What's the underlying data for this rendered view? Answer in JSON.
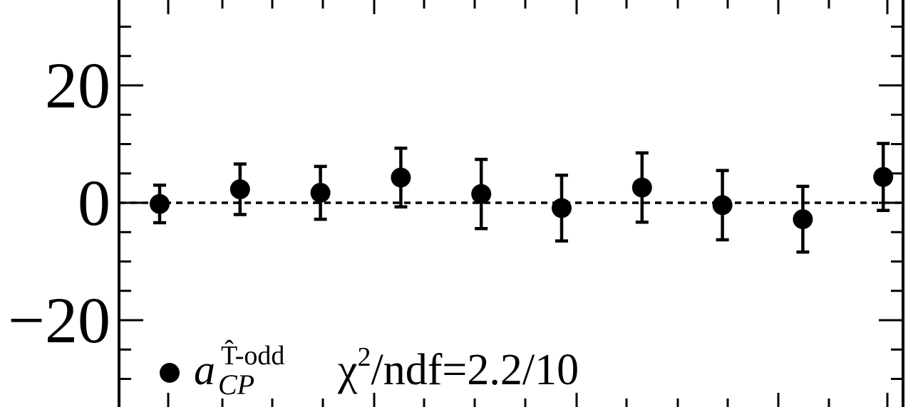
{
  "chart_data": {
    "type": "scatter",
    "ylim": [
      -34,
      34
    ],
    "xlim": [
      0.5,
      10.5
    ],
    "yticks_major": [
      -20,
      0,
      20
    ],
    "ytick_labels": [
      "−20",
      "0",
      "20"
    ],
    "grid": false,
    "reference_line": {
      "y": 0,
      "style": "dashed"
    },
    "series": [
      {
        "marker": "filled-circle",
        "color": "#000000",
        "points": [
          {
            "x": 1,
            "y": -0.2,
            "err": 3.2
          },
          {
            "x": 2,
            "y": 2.3,
            "err": 4.3
          },
          {
            "x": 3,
            "y": 1.7,
            "err": 4.5
          },
          {
            "x": 4,
            "y": 4.3,
            "err": 5.0
          },
          {
            "x": 5,
            "y": 1.5,
            "err": 5.9
          },
          {
            "x": 6,
            "y": -0.9,
            "err": 5.6
          },
          {
            "x": 7,
            "y": 2.6,
            "err": 5.9
          },
          {
            "x": 8,
            "y": -0.4,
            "err": 5.9
          },
          {
            "x": 9,
            "y": -2.8,
            "err": 5.6
          },
          {
            "x": 10,
            "y": 4.4,
            "err": 5.7
          }
        ]
      }
    ],
    "legend": {
      "placement": "bottom-left",
      "label_base": "a",
      "label_sup": "T̂-odd",
      "label_sub": "CP",
      "stat_chi": "χ",
      "stat_sup": "2",
      "stat_rest": "/ndf=2.2/10"
    }
  }
}
